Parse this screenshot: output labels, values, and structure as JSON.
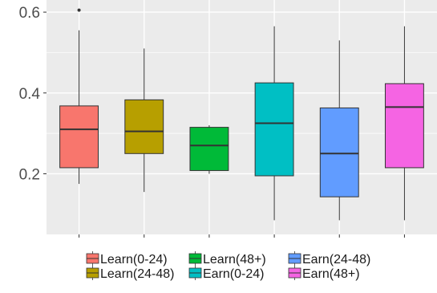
{
  "chart_data": {
    "type": "box",
    "title": "",
    "xlabel": "",
    "ylabel": "",
    "ylim": [
      0.05,
      0.63
    ],
    "yticks": [
      0.2,
      0.4,
      0.6
    ],
    "ytick_labels": [
      "0.2",
      "0.4",
      "0.6"
    ],
    "grid": true,
    "background_color": "#ebebeb",
    "gridline_color": "#ffffff",
    "legend_position": "bottom",
    "series": [
      {
        "name": "Learn(0-24)",
        "color": "#f8766d",
        "whisker_low": 0.175,
        "q1": 0.215,
        "median": 0.31,
        "q3": 0.368,
        "whisker_high": 0.555,
        "outliers": [
          0.605
        ]
      },
      {
        "name": "Learn(24-48)",
        "color": "#b79f00",
        "whisker_low": 0.155,
        "q1": 0.25,
        "median": 0.305,
        "q3": 0.383,
        "whisker_high": 0.51,
        "outliers": []
      },
      {
        "name": "Learn(48+)",
        "color": "#00ba38",
        "whisker_low": 0.2,
        "q1": 0.208,
        "median": 0.27,
        "q3": 0.315,
        "whisker_high": 0.32,
        "outliers": []
      },
      {
        "name": "Earn(0-24)",
        "color": "#00bfc4",
        "whisker_low": 0.085,
        "q1": 0.195,
        "median": 0.325,
        "q3": 0.425,
        "whisker_high": 0.565,
        "outliers": []
      },
      {
        "name": "Earn(24-48)",
        "color": "#619cff",
        "whisker_low": 0.085,
        "q1": 0.143,
        "median": 0.25,
        "q3": 0.363,
        "whisker_high": 0.53,
        "outliers": []
      },
      {
        "name": "Earn(48+)",
        "color": "#f564e3",
        "whisker_low": 0.085,
        "q1": 0.215,
        "median": 0.365,
        "q3": 0.423,
        "whisker_high": 0.565,
        "outliers": []
      }
    ],
    "legend": {
      "rows": [
        [
          "Learn(0-24)",
          "Learn(48+)",
          "Earn(24-48)"
        ],
        [
          "Learn(24-48)",
          "Earn(0-24)",
          "Earn(48+)"
        ]
      ]
    }
  }
}
